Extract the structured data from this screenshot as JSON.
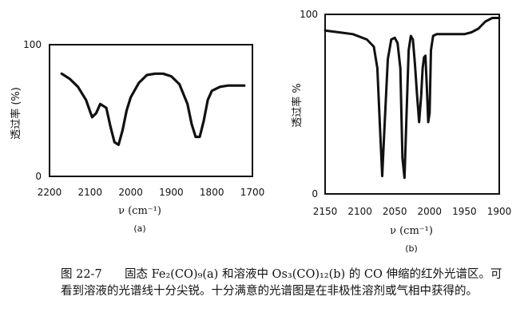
{
  "chart_data": [
    {
      "type": "line",
      "panel_label": "(a)",
      "ylabel": "透过率 (%)",
      "xlabel": "ν (cm⁻¹)",
      "xlim": [
        2200,
        1700
      ],
      "ylim": [
        0,
        100
      ],
      "x_ticks": [
        "2200",
        "2100",
        "2000",
        "1900",
        "1800",
        "1700"
      ],
      "y_ticks": [
        "0",
        "100"
      ],
      "series": [
        {
          "x": [
            2170,
            2150,
            2130,
            2110,
            2095,
            2085,
            2075,
            2060,
            2050,
            2040,
            2030,
            2020,
            2010,
            2000,
            1980,
            1960,
            1940,
            1920,
            1900,
            1880,
            1860,
            1850,
            1840,
            1830,
            1820,
            1810,
            1800,
            1780,
            1760,
            1740,
            1720
          ],
          "y": [
            78,
            74,
            68,
            58,
            45,
            48,
            55,
            52,
            38,
            26,
            24,
            35,
            50,
            60,
            71,
            77,
            78,
            78,
            76,
            70,
            55,
            40,
            30,
            30,
            42,
            58,
            65,
            68,
            69,
            69,
            69
          ]
        }
      ]
    },
    {
      "type": "line",
      "panel_label": "(b)",
      "ylabel": "透过率 %",
      "xlabel": "ν (cm⁻¹)",
      "xlim": [
        2150,
        1900
      ],
      "ylim": [
        0,
        100
      ],
      "x_ticks": [
        "2150",
        "2100",
        "2050",
        "2000",
        "1950",
        "1900"
      ],
      "y_ticks": [
        "0",
        "100"
      ],
      "series": [
        {
          "x": [
            2150,
            2130,
            2110,
            2090,
            2080,
            2075,
            2071,
            2068,
            2065,
            2060,
            2055,
            2050,
            2046,
            2042,
            2039,
            2036,
            2033,
            2030,
            2027,
            2024,
            2021,
            2018,
            2015,
            2012,
            2010,
            2008,
            2006,
            2004,
            2002,
            2000,
            1998,
            1995,
            1990,
            1980,
            1970,
            1960,
            1950,
            1940,
            1930,
            1920,
            1910,
            1900
          ],
          "y": [
            91,
            90,
            89,
            86,
            82,
            70,
            35,
            10,
            35,
            75,
            86,
            87,
            84,
            70,
            20,
            9,
            45,
            80,
            88,
            86,
            72,
            55,
            40,
            55,
            70,
            76,
            77,
            60,
            40,
            45,
            80,
            88,
            89,
            89,
            89,
            89,
            89,
            90,
            92,
            96,
            98,
            98
          ]
        }
      ]
    }
  ],
  "caption": {
    "label": "图 22-7",
    "text": "固态 Fe₂(CO)₉(a) 和溶液中 Os₃(CO)₁₂(b) 的 CO 伸缩的红外光谱区。可看到溶液的光谱线十分尖锐。十分满意的光谱图是在非极性溶剂或气相中获得的。"
  }
}
